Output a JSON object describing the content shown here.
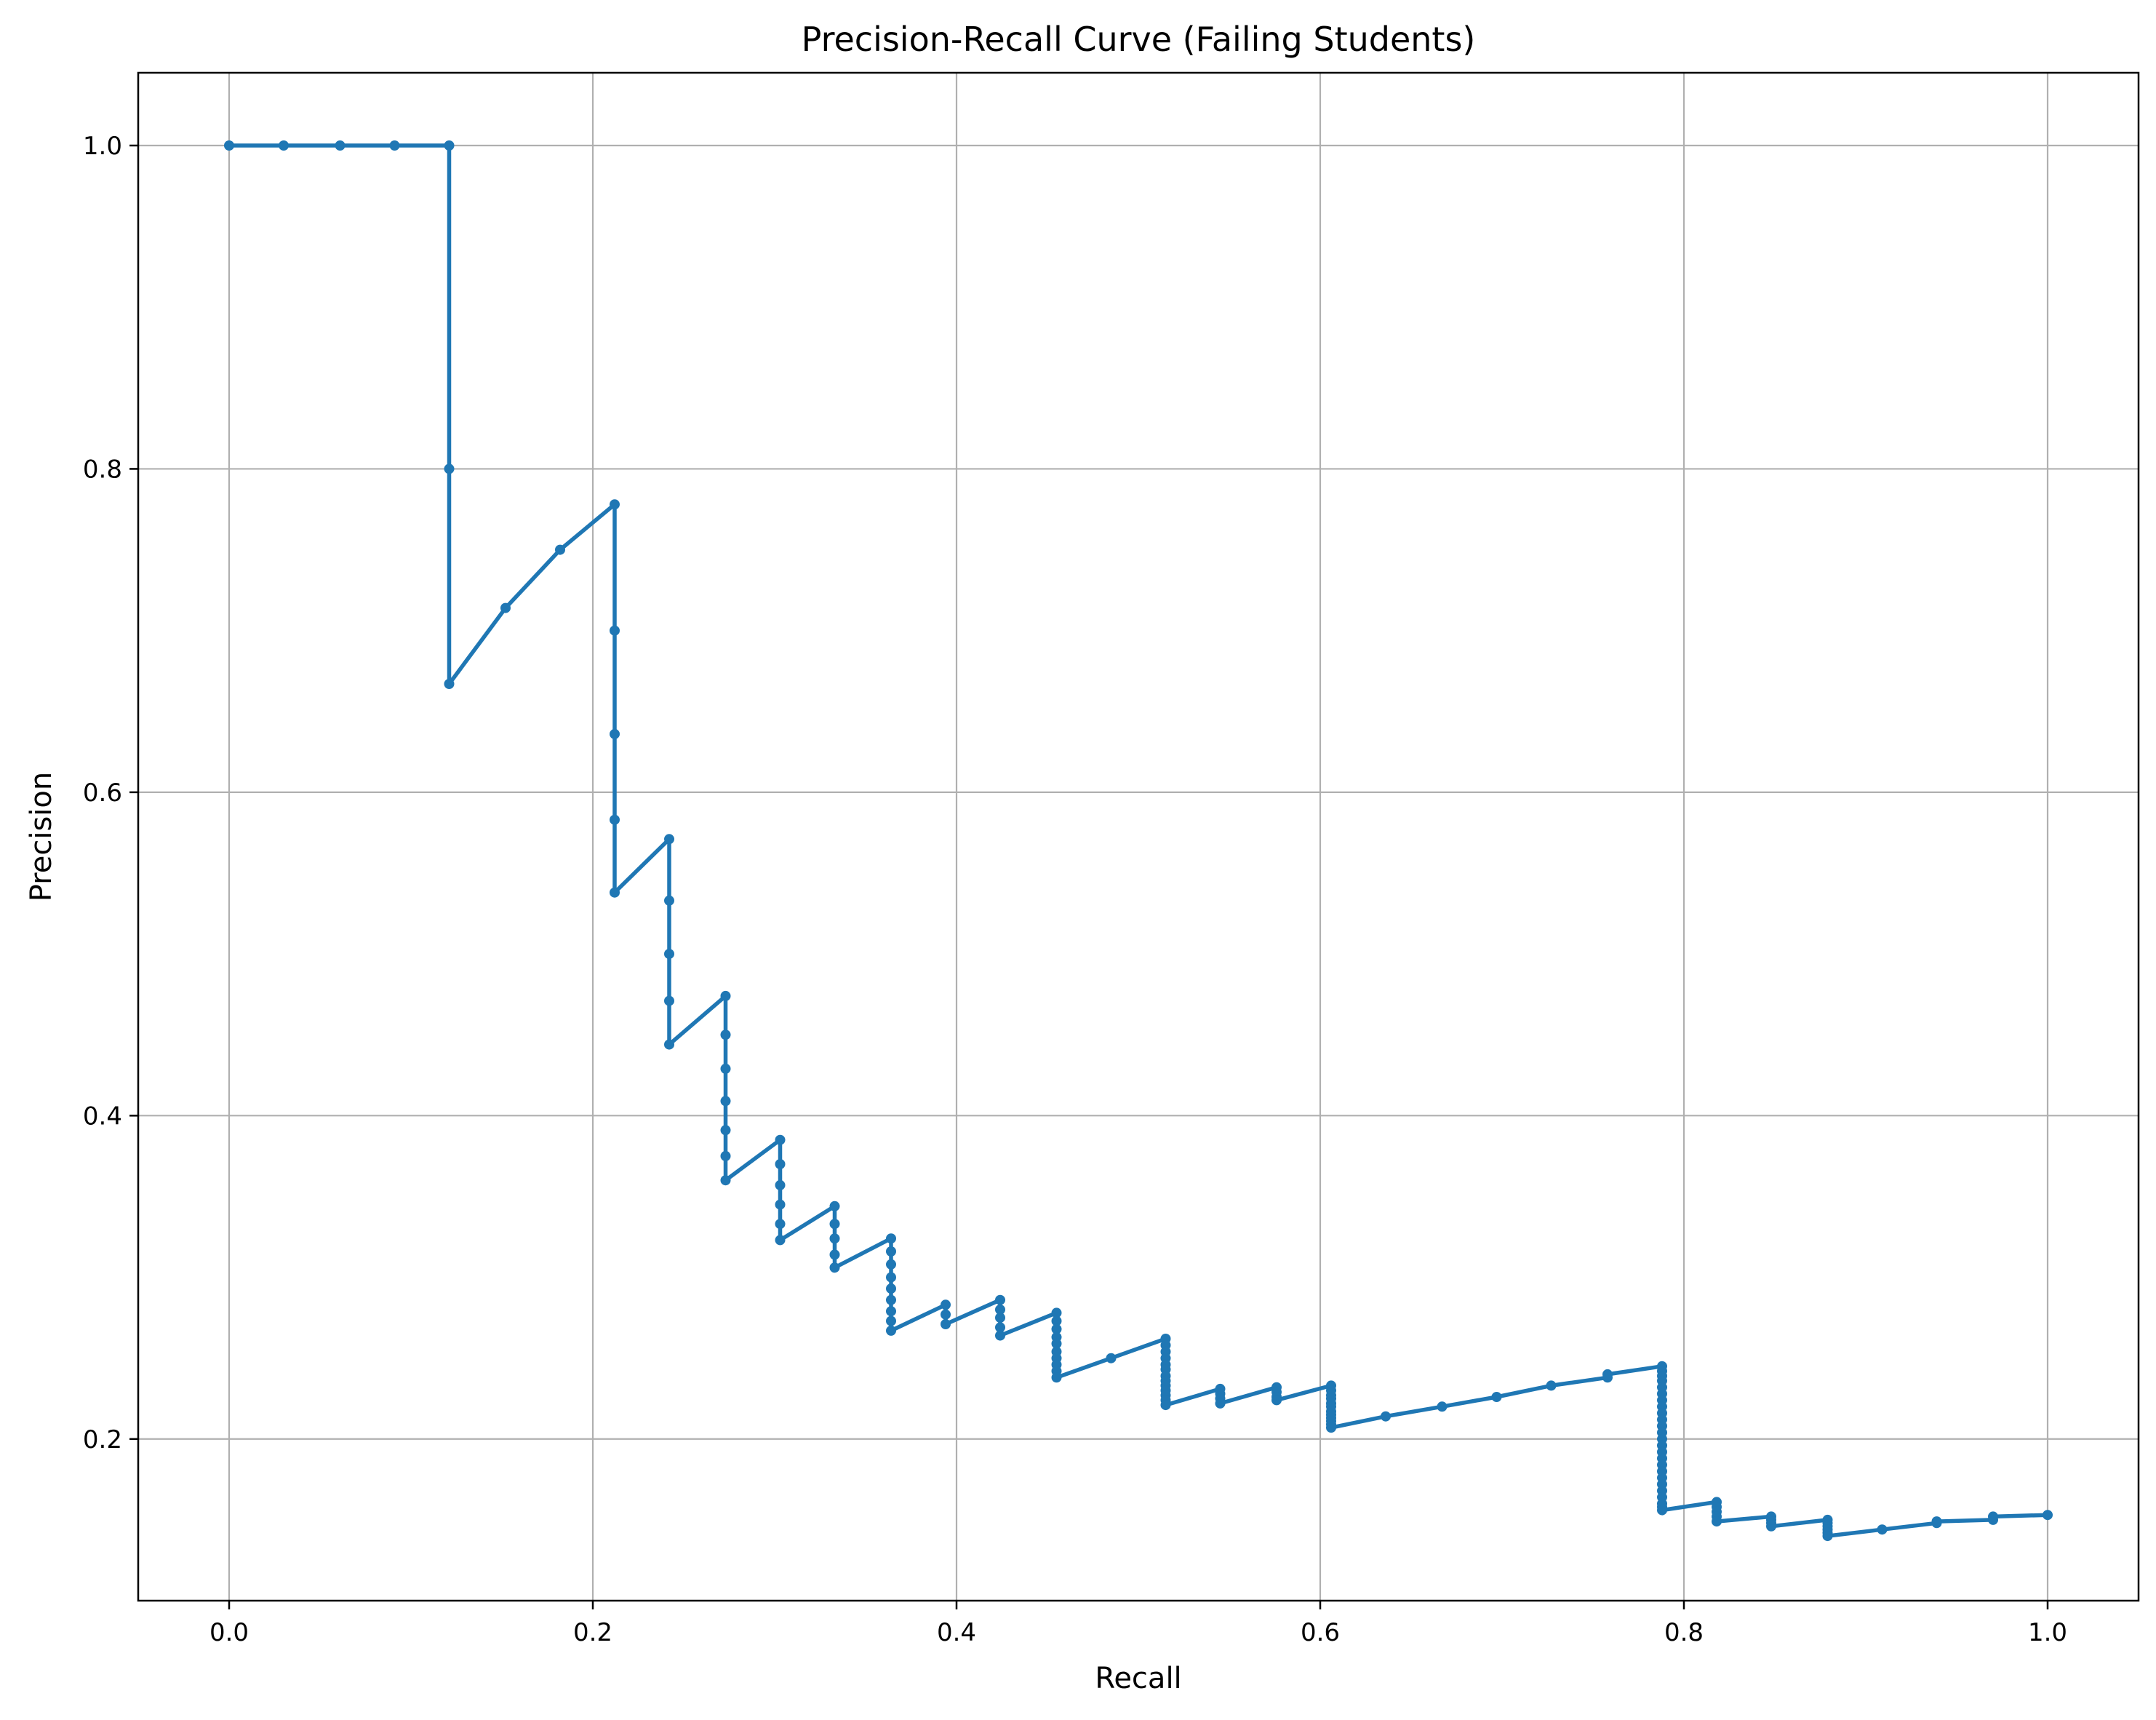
{
  "chart_data": {
    "type": "line",
    "title": "Precision-Recall Curve (Failing Students)",
    "xlabel": "Recall",
    "ylabel": "Precision",
    "xlim": [
      -0.05,
      1.05
    ],
    "ylim": [
      0.1,
      1.045
    ],
    "xticks": [
      0.0,
      0.2,
      0.4,
      0.6,
      0.8,
      1.0
    ],
    "xtick_labels": [
      "0.0",
      "0.2",
      "0.4",
      "0.6",
      "0.8",
      "1.0"
    ],
    "yticks": [
      0.2,
      0.4,
      0.6,
      0.8,
      1.0
    ],
    "ytick_labels": [
      "0.2",
      "0.4",
      "0.6",
      "0.8",
      "1.0"
    ],
    "grid": true,
    "legend": "none",
    "series": [
      {
        "color": "#1f77b4",
        "marker": "dot",
        "points": [
          [
            0.0,
            1.0
          ],
          [
            0.03,
            1.0
          ],
          [
            0.061,
            1.0
          ],
          [
            0.091,
            1.0
          ],
          [
            0.121,
            1.0
          ],
          [
            0.121,
            0.8
          ],
          [
            0.121,
            0.667
          ],
          [
            0.152,
            0.714
          ],
          [
            0.182,
            0.75
          ],
          [
            0.212,
            0.778
          ],
          [
            0.212,
            0.7
          ],
          [
            0.212,
            0.636
          ],
          [
            0.212,
            0.583
          ],
          [
            0.212,
            0.538
          ],
          [
            0.242,
            0.571
          ],
          [
            0.242,
            0.533
          ],
          [
            0.242,
            0.5
          ],
          [
            0.242,
            0.471
          ],
          [
            0.242,
            0.444
          ],
          [
            0.273,
            0.474
          ],
          [
            0.273,
            0.45
          ],
          [
            0.273,
            0.429
          ],
          [
            0.273,
            0.409
          ],
          [
            0.273,
            0.391
          ],
          [
            0.273,
            0.375
          ],
          [
            0.273,
            0.36
          ],
          [
            0.303,
            0.385
          ],
          [
            0.303,
            0.37
          ],
          [
            0.303,
            0.357
          ],
          [
            0.303,
            0.345
          ],
          [
            0.303,
            0.333
          ],
          [
            0.303,
            0.323
          ],
          [
            0.333,
            0.344
          ],
          [
            0.333,
            0.333
          ],
          [
            0.333,
            0.324
          ],
          [
            0.333,
            0.314
          ],
          [
            0.333,
            0.306
          ],
          [
            0.364,
            0.324
          ],
          [
            0.364,
            0.316
          ],
          [
            0.364,
            0.308
          ],
          [
            0.364,
            0.3
          ],
          [
            0.364,
            0.293
          ],
          [
            0.364,
            0.286
          ],
          [
            0.364,
            0.279
          ],
          [
            0.364,
            0.273
          ],
          [
            0.364,
            0.267
          ],
          [
            0.394,
            0.283
          ],
          [
            0.394,
            0.277
          ],
          [
            0.394,
            0.271
          ],
          [
            0.424,
            0.286
          ],
          [
            0.424,
            0.28
          ],
          [
            0.424,
            0.275
          ],
          [
            0.424,
            0.269
          ],
          [
            0.424,
            0.264
          ],
          [
            0.455,
            0.278
          ],
          [
            0.455,
            0.273
          ],
          [
            0.455,
            0.268
          ],
          [
            0.455,
            0.263
          ],
          [
            0.455,
            0.259
          ],
          [
            0.455,
            0.254
          ],
          [
            0.455,
            0.25
          ],
          [
            0.455,
            0.246
          ],
          [
            0.455,
            0.242
          ],
          [
            0.455,
            0.238
          ],
          [
            0.485,
            0.25
          ],
          [
            0.515,
            0.262
          ],
          [
            0.515,
            0.258
          ],
          [
            0.515,
            0.254
          ],
          [
            0.515,
            0.25
          ],
          [
            0.515,
            0.246
          ],
          [
            0.515,
            0.243
          ],
          [
            0.515,
            0.239
          ],
          [
            0.515,
            0.236
          ],
          [
            0.515,
            0.233
          ],
          [
            0.515,
            0.23
          ],
          [
            0.515,
            0.227
          ],
          [
            0.515,
            0.224
          ],
          [
            0.515,
            0.221
          ],
          [
            0.545,
            0.231
          ],
          [
            0.545,
            0.228
          ],
          [
            0.545,
            0.225
          ],
          [
            0.545,
            0.222
          ],
          [
            0.576,
            0.232
          ],
          [
            0.576,
            0.229
          ],
          [
            0.576,
            0.226
          ],
          [
            0.576,
            0.224
          ],
          [
            0.606,
            0.233
          ],
          [
            0.606,
            0.23
          ],
          [
            0.606,
            0.227
          ],
          [
            0.606,
            0.225
          ],
          [
            0.606,
            0.222
          ],
          [
            0.606,
            0.22
          ],
          [
            0.606,
            0.217
          ],
          [
            0.606,
            0.215
          ],
          [
            0.606,
            0.213
          ],
          [
            0.606,
            0.211
          ],
          [
            0.606,
            0.209
          ],
          [
            0.606,
            0.207
          ],
          [
            0.636,
            0.214
          ],
          [
            0.667,
            0.22
          ],
          [
            0.697,
            0.226
          ],
          [
            0.727,
            0.233
          ],
          [
            0.758,
            0.238
          ],
          [
            0.758,
            0.24
          ],
          [
            0.788,
            0.245
          ],
          [
            0.788,
            0.242
          ],
          [
            0.788,
            0.239
          ],
          [
            0.788,
            0.236
          ],
          [
            0.788,
            0.232
          ],
          [
            0.788,
            0.228
          ],
          [
            0.788,
            0.224
          ],
          [
            0.788,
            0.22
          ],
          [
            0.788,
            0.216
          ],
          [
            0.788,
            0.212
          ],
          [
            0.788,
            0.208
          ],
          [
            0.788,
            0.204
          ],
          [
            0.788,
            0.2
          ],
          [
            0.788,
            0.196
          ],
          [
            0.788,
            0.192
          ],
          [
            0.788,
            0.188
          ],
          [
            0.788,
            0.184
          ],
          [
            0.788,
            0.18
          ],
          [
            0.788,
            0.176
          ],
          [
            0.788,
            0.172
          ],
          [
            0.788,
            0.168
          ],
          [
            0.788,
            0.164
          ],
          [
            0.788,
            0.16
          ],
          [
            0.788,
            0.158
          ],
          [
            0.788,
            0.156
          ],
          [
            0.818,
            0.161
          ],
          [
            0.818,
            0.158
          ],
          [
            0.818,
            0.155
          ],
          [
            0.818,
            0.152
          ],
          [
            0.818,
            0.149
          ],
          [
            0.848,
            0.152
          ],
          [
            0.848,
            0.15
          ],
          [
            0.848,
            0.148
          ],
          [
            0.848,
            0.146
          ],
          [
            0.879,
            0.15
          ],
          [
            0.879,
            0.148
          ],
          [
            0.879,
            0.146
          ],
          [
            0.879,
            0.144
          ],
          [
            0.879,
            0.142
          ],
          [
            0.879,
            0.14
          ],
          [
            0.909,
            0.144
          ],
          [
            0.939,
            0.148
          ],
          [
            0.939,
            0.149
          ],
          [
            0.97,
            0.15
          ],
          [
            0.97,
            0.152
          ],
          [
            1.0,
            0.153
          ]
        ]
      }
    ]
  }
}
